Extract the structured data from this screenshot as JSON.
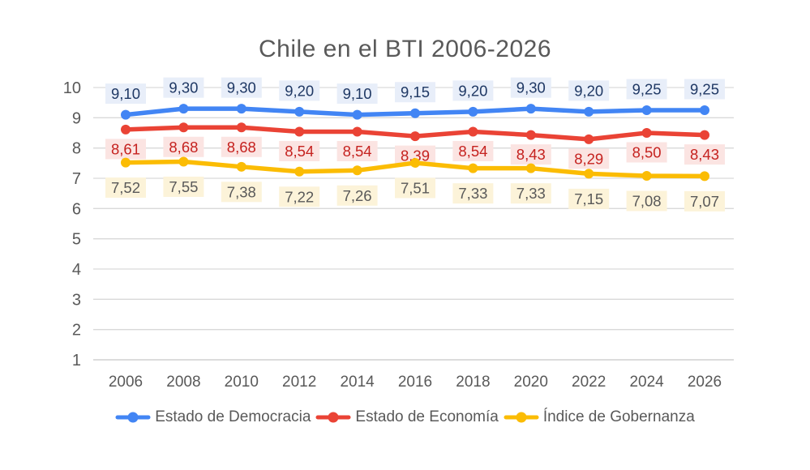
{
  "chart_data": {
    "type": "line",
    "title": "Chile en el BTI 2006-2026",
    "xlabel": "",
    "ylabel": "",
    "categories": [
      "2006",
      "2008",
      "2010",
      "2012",
      "2014",
      "2016",
      "2018",
      "2020",
      "2022",
      "2024",
      "2026"
    ],
    "ylim": [
      1,
      10
    ],
    "y_ticks": [
      "1",
      "2",
      "3",
      "4",
      "5",
      "6",
      "7",
      "8",
      "9",
      "10"
    ],
    "grid": true,
    "legend_position": "bottom",
    "decimal_separator": ",",
    "background_color": "#ffffff",
    "gridline_color": "#d9d9d9",
    "axis_text_color": "#595959",
    "series": [
      {
        "id": "estado-de-democracia",
        "name": "Estado de Democracia",
        "color": "#4285f4",
        "values": [
          9.1,
          9.3,
          9.3,
          9.2,
          9.1,
          9.15,
          9.2,
          9.3,
          9.2,
          9.25,
          9.25
        ],
        "labels": [
          "9,10",
          "9,30",
          "9,30",
          "9,20",
          "9,10",
          "9,15",
          "9,20",
          "9,30",
          "9,20",
          "9,25",
          "9,25"
        ],
        "label_color": "#1f3864",
        "label_bg": "#e8eef9",
        "label_side": "above"
      },
      {
        "id": "estado-de-economia",
        "name": "Estado de Economía",
        "color": "#ea4335",
        "values": [
          8.61,
          8.68,
          8.68,
          8.54,
          8.54,
          8.39,
          8.54,
          8.43,
          8.29,
          8.5,
          8.43
        ],
        "labels": [
          "8,61",
          "8,68",
          "8,68",
          "8,54",
          "8,54",
          "8,39",
          "8,54",
          "8,43",
          "8,29",
          "8,50",
          "8,43"
        ],
        "label_color": "#c5221f",
        "label_bg": "#fbe4e2",
        "label_side": "below"
      },
      {
        "id": "indice-de-gobernanza",
        "name": "Índice de Gobernanza",
        "color": "#fbbc04",
        "values": [
          7.52,
          7.55,
          7.38,
          7.22,
          7.26,
          7.51,
          7.33,
          7.33,
          7.15,
          7.08,
          7.07
        ],
        "labels": [
          "7,52",
          "7,55",
          "7,38",
          "7,22",
          "7,26",
          "7,51",
          "7,33",
          "7,33",
          "7,15",
          "7,08",
          "7,07"
        ],
        "label_color": "#595959",
        "label_bg": "#fcf3d9",
        "label_side": "below"
      }
    ]
  }
}
